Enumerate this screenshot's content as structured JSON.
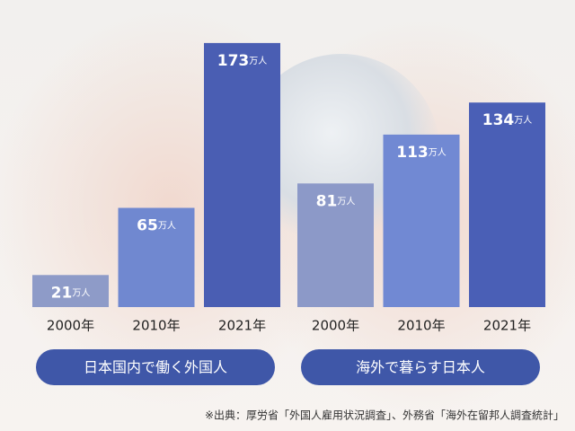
{
  "chart_data": [
    {
      "type": "bar",
      "title": "日本国内で働く外国人",
      "categories": [
        "2000年",
        "2010年",
        "2021年"
      ],
      "values": [
        21,
        65,
        173
      ],
      "value_labels": [
        "21万人",
        "65万人",
        "173万人"
      ],
      "colors": [
        "#8e9bc8",
        "#7088d0",
        "#4a5eb3"
      ]
    },
    {
      "type": "bar",
      "title": "海外で暮らす日本人",
      "categories": [
        "2000年",
        "2010年",
        "2021年"
      ],
      "values": [
        81,
        113,
        134
      ],
      "value_labels": [
        "81万人",
        "113万人",
        "134万人"
      ],
      "colors": [
        "#8c99c8",
        "#7189d3",
        "#4a5fb6"
      ]
    }
  ],
  "source": "※出典：厚労省「外国人雇用状況調査」、外務省「海外在留邦人調査統計」"
}
